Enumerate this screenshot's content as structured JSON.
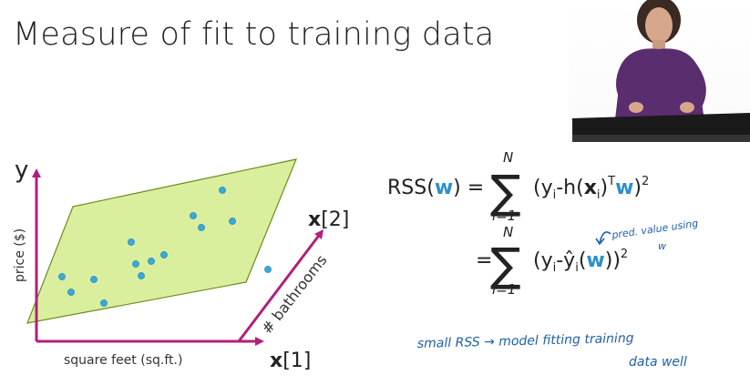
{
  "slide": {
    "title": "Measure of fit to training data"
  },
  "plot": {
    "y_axis": "y",
    "y_label": "price ($)",
    "x1_label": "square feet (sq.ft.)",
    "x1_var": "x",
    "x1_index": "[1]",
    "x2_label": "# bathrooms",
    "x2_var": "x",
    "x2_index": "[2]"
  },
  "equation": {
    "line1_lhs_prefix": "RSS(",
    "line1_lhs_w": "w",
    "line1_lhs_suffix": ") =",
    "sum_upper": "N",
    "sum_lower": "i=1",
    "line1_rhs_a": "(y",
    "line1_rhs_b": "-h(",
    "line1_rhs_x": "x",
    "line1_rhs_c": ")",
    "line1_rhs_w": "w",
    "line1_rhs_d": ")",
    "sub_i": "i",
    "sup_T": "T",
    "sup_2": "2",
    "line2_eq": "=",
    "line2_rhs_a": "(y",
    "line2_rhs_b": "-ŷ",
    "line2_rhs_c": "(",
    "line2_rhs_w": "w",
    "line2_rhs_d": "))"
  },
  "annotations": {
    "pred_line1": "pred. value using",
    "pred_line2": "w",
    "note_line1": "small RSS  →  model fitting training",
    "note_line2": "data well"
  },
  "colors": {
    "axis": "#b0207a",
    "plane_fill": "#d4ec8c",
    "plane_stroke": "#6a8c1a",
    "points": "#39a8dc",
    "w_blue": "#2d8fcb",
    "ink": "#1f5fa8"
  }
}
